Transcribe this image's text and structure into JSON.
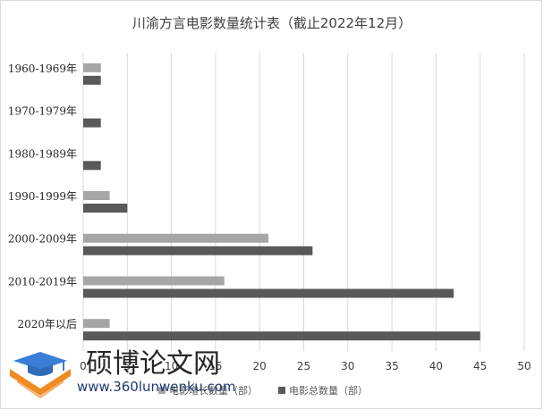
{
  "chart_data": {
    "type": "bar",
    "orientation": "horizontal",
    "title": "川渝方言电影数量统计表（截止2022年12月）",
    "categories": [
      "1960-1969年",
      "1970-1979年",
      "1980-1989年",
      "1990-1999年",
      "2000-2009年",
      "2010-2019年",
      "2020年以后"
    ],
    "series": [
      {
        "name": "电影增长数量（部）",
        "color": "#a6a6a6",
        "values": [
          2,
          0,
          0,
          3,
          21,
          16,
          3
        ]
      },
      {
        "name": "电影总数量（部）",
        "color": "#595959",
        "values": [
          2,
          2,
          2,
          5,
          26,
          42,
          45
        ]
      }
    ],
    "xlim": [
      0,
      50
    ],
    "xticks": [
      0,
      5,
      10,
      15,
      20,
      25,
      30,
      35,
      40,
      45,
      50
    ],
    "grid": true,
    "legend_position": "bottom"
  },
  "watermark": {
    "title": "硕博论文网",
    "url": "www.360lunwenku.com",
    "colors": {
      "cap": "#3a7fd5",
      "book": "#f08a24"
    }
  }
}
